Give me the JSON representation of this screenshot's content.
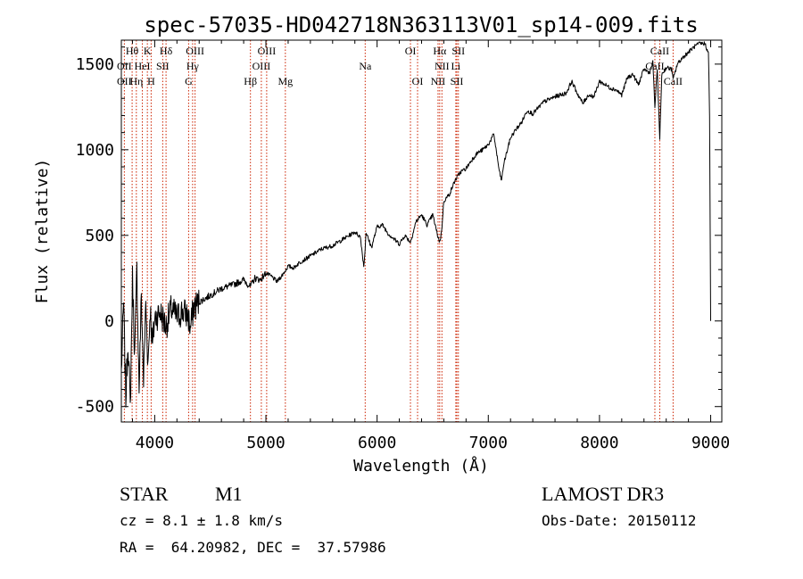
{
  "chart_data": {
    "type": "line",
    "title": "spec-57035-HD042718N363113V01_sp14-009.fits",
    "xlabel": "Wavelength (Å)",
    "ylabel": "Flux (relative)",
    "xlim": [
      3700,
      9100
    ],
    "ylim": [
      -590,
      1640
    ],
    "xticks": [
      4000,
      5000,
      6000,
      7000,
      8000,
      9000
    ],
    "yticks": [
      -500,
      0,
      500,
      1000,
      1500
    ],
    "grid": false,
    "series": [
      {
        "name": "flux",
        "x": [
          3700,
          3720,
          3740,
          3760,
          3780,
          3800,
          3820,
          3840,
          3860,
          3880,
          3900,
          3920,
          3940,
          3960,
          3980,
          4000,
          4050,
          4100,
          4150,
          4200,
          4250,
          4300,
          4320,
          4350,
          4400,
          4500,
          4600,
          4700,
          4800,
          4860,
          4900,
          4950,
          5000,
          5050,
          5100,
          5150,
          5200,
          5250,
          5300,
          5400,
          5500,
          5600,
          5700,
          5800,
          5850,
          5880,
          5893,
          5900,
          5920,
          5950,
          6000,
          6050,
          6100,
          6150,
          6200,
          6250,
          6300,
          6350,
          6400,
          6450,
          6500,
          6540,
          6563,
          6580,
          6600,
          6650,
          6700,
          6750,
          6800,
          6850,
          6900,
          6950,
          7000,
          7050,
          7100,
          7120,
          7140,
          7200,
          7250,
          7300,
          7350,
          7400,
          7500,
          7600,
          7700,
          7750,
          7800,
          7850,
          7900,
          7950,
          8000,
          8050,
          8100,
          8150,
          8200,
          8250,
          8300,
          8350,
          8400,
          8450,
          8480,
          8498,
          8520,
          8542,
          8560,
          8600,
          8650,
          8662,
          8700,
          8750,
          8800,
          8850,
          8900,
          8950,
          8980,
          8990,
          9000
        ],
        "y": [
          -300,
          100,
          -450,
          -100,
          -520,
          250,
          -200,
          300,
          -400,
          150,
          -350,
          100,
          -250,
          80,
          -150,
          20,
          50,
          -30,
          70,
          20,
          60,
          30,
          -50,
          80,
          110,
          150,
          190,
          210,
          240,
          200,
          250,
          240,
          280,
          260,
          230,
          270,
          320,
          310,
          340,
          380,
          420,
          440,
          480,
          520,
          490,
          320,
          420,
          520,
          480,
          430,
          550,
          560,
          510,
          480,
          450,
          500,
          460,
          580,
          620,
          560,
          620,
          510,
          460,
          520,
          700,
          740,
          820,
          870,
          890,
          940,
          980,
          1000,
          1030,
          1090,
          870,
          820,
          920,
          1070,
          1120,
          1160,
          1230,
          1210,
          1280,
          1310,
          1330,
          1400,
          1330,
          1270,
          1320,
          1310,
          1400,
          1380,
          1360,
          1350,
          1320,
          1420,
          1440,
          1380,
          1470,
          1450,
          1510,
          1250,
          1470,
          1060,
          1440,
          1480,
          1470,
          1410,
          1500,
          1540,
          1570,
          1600,
          1620,
          1620,
          1560,
          1200,
          0
        ]
      }
    ],
    "lines": [
      {
        "name": "OII",
        "x": 3727
      },
      {
        "name": "Hθ",
        "x": 3797
      },
      {
        "name": "Hη",
        "x": 3835
      },
      {
        "name": "HeI",
        "x": 3889
      },
      {
        "name": "K",
        "x": 3934
      },
      {
        "name": "H",
        "x": 3968
      },
      {
        "name": "Hδ",
        "x": 4102
      },
      {
        "name": "SII",
        "x": 4072
      },
      {
        "name": "G",
        "x": 4305
      },
      {
        "name": "Hγ",
        "x": 4341
      },
      {
        "name": "OIII",
        "x": 4363
      },
      {
        "name": "Hβ",
        "x": 4861
      },
      {
        "name": "OIII",
        "x": 4959
      },
      {
        "name": "OIII",
        "x": 5007
      },
      {
        "name": "Mg",
        "x": 5175
      },
      {
        "name": "Na",
        "x": 5893
      },
      {
        "name": "OI",
        "x": 6300
      },
      {
        "name": "OI",
        "x": 6364
      },
      {
        "name": "NII",
        "x": 6548
      },
      {
        "name": "Hα",
        "x": 6563
      },
      {
        "name": "NII",
        "x": 6583
      },
      {
        "name": "Li",
        "x": 6708
      },
      {
        "name": "SII",
        "x": 6717
      },
      {
        "name": "SII",
        "x": 6731
      },
      {
        "name": "CaII",
        "x": 8498
      },
      {
        "name": "CaII",
        "x": 8542
      },
      {
        "name": "CaII",
        "x": 8662
      }
    ],
    "line_labels": [
      {
        "text": "Hθ",
        "x": 3797,
        "row": 1
      },
      {
        "text": "K",
        "x": 3934,
        "row": 1
      },
      {
        "text": "Hδ",
        "x": 4102,
        "row": 1
      },
      {
        "text": "OIII",
        "x": 4363,
        "row": 1
      },
      {
        "text": "OIII",
        "x": 5007,
        "row": 1
      },
      {
        "text": "OI",
        "x": 6300,
        "row": 1
      },
      {
        "text": "Hα",
        "x": 6563,
        "row": 1
      },
      {
        "text": "SII",
        "x": 6731,
        "row": 1
      },
      {
        "text": "CaII",
        "x": 8542,
        "row": 1
      },
      {
        "text": "OII",
        "x": 3727,
        "row": 2
      },
      {
        "text": "HeI",
        "x": 3889,
        "row": 2
      },
      {
        "text": "SII",
        "x": 4072,
        "row": 2
      },
      {
        "text": "Hγ",
        "x": 4341,
        "row": 2
      },
      {
        "text": "OIII",
        "x": 4959,
        "row": 2
      },
      {
        "text": "Na",
        "x": 5893,
        "row": 2
      },
      {
        "text": "NII",
        "x": 6583,
        "row": 2
      },
      {
        "text": "Li",
        "x": 6708,
        "row": 2
      },
      {
        "text": "CaII",
        "x": 8498,
        "row": 2
      },
      {
        "text": "OII",
        "x": 3727,
        "row": 3
      },
      {
        "text": "Hη",
        "x": 3835,
        "row": 3
      },
      {
        "text": "H",
        "x": 3968,
        "row": 3
      },
      {
        "text": "G",
        "x": 4305,
        "row": 3
      },
      {
        "text": "Hβ",
        "x": 4861,
        "row": 3
      },
      {
        "text": "Mg",
        "x": 5175,
        "row": 3
      },
      {
        "text": "OI",
        "x": 6364,
        "row": 3
      },
      {
        "text": "NII",
        "x": 6548,
        "row": 3
      },
      {
        "text": "SII",
        "x": 6717,
        "row": 3
      },
      {
        "text": "CaII",
        "x": 8662,
        "row": 3
      }
    ],
    "colors": {
      "spectrum": "#000000",
      "lines": "#cc2200"
    }
  },
  "info": {
    "object_class": "STAR",
    "subclass": "M1",
    "survey": "LAMOST DR3",
    "cz": "cz = 8.1 ± 1.8 km/s",
    "obs_date": "Obs-Date: 20150112",
    "coords": "RA =  64.20982, DEC =  37.57986"
  }
}
